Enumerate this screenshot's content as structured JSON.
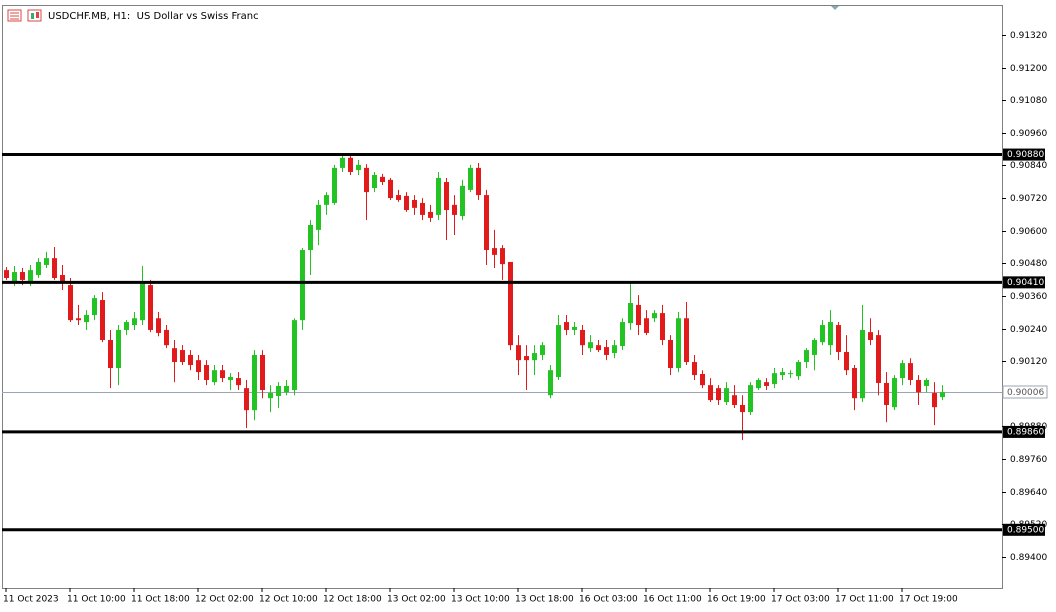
{
  "chart_data": {
    "type": "candlestick",
    "title": "USDCHF.MB, H1:  US Dollar vs Swiss Franc",
    "categories": [
      "11 Oct 2023",
      null,
      null,
      null,
      null,
      null,
      null,
      null,
      "11 Oct 10:00",
      null,
      null,
      null,
      null,
      null,
      null,
      null,
      "11 Oct 18:00",
      null,
      null,
      null,
      null,
      null,
      null,
      null,
      "12 Oct 02:00",
      null,
      null,
      null,
      null,
      null,
      null,
      null,
      "12 Oct 10:00",
      null,
      null,
      null,
      null,
      null,
      null,
      null,
      "12 Oct 18:00",
      null,
      null,
      null,
      null,
      null,
      null,
      null,
      "13 Oct 02:00",
      null,
      null,
      null,
      null,
      null,
      null,
      null,
      "13 Oct 10:00",
      null,
      null,
      null,
      null,
      null,
      null,
      null,
      "13 Oct 18:00",
      null,
      null,
      null,
      null,
      null,
      null,
      null,
      "16 Oct 03:00",
      null,
      null,
      null,
      null,
      null,
      null,
      null,
      "16 Oct 11:00",
      null,
      null,
      null,
      null,
      null,
      null,
      null,
      "16 Oct 19:00",
      null,
      null,
      null,
      null,
      null,
      null,
      null,
      "17 Oct 03:00",
      null,
      null,
      null,
      null,
      null,
      null,
      null,
      "17 Oct 11:00",
      null,
      null,
      null,
      null,
      null,
      null,
      null,
      "17 Oct 19:00",
      null,
      null,
      null,
      null,
      null
    ],
    "open": [
      0.90455,
      0.90407,
      0.90448,
      0.90415,
      0.90437,
      0.90474,
      0.90499,
      0.90437,
      0.904,
      0.90278,
      0.90264,
      0.9029,
      0.90345,
      0.90198,
      0.90095,
      0.90235,
      0.90253,
      0.90271,
      0.904,
      0.90278,
      0.90235,
      0.90168,
      0.90161,
      0.90143,
      0.90124,
      0.90106,
      0.90043,
      0.90087,
      0.90051,
      0.90058,
      0.90021,
      0.8994,
      0.90143,
      0.89984,
      0.89992,
      0.90006,
      0.90014,
      0.90271,
      0.90529,
      0.90603,
      0.90695,
      0.90702,
      0.90831,
      0.90868,
      0.90823,
      0.90831,
      0.90757,
      0.90798,
      0.90787,
      0.90731,
      0.90728,
      0.90713,
      0.90702,
      0.90669,
      0.90658,
      0.90779,
      0.90695,
      0.90654,
      0.9075,
      0.90831,
      0.90731,
      0.90536,
      0.90536,
      0.90485,
      0.90179,
      0.90139,
      0.90124,
      0.90143,
      0.89995,
      0.90062,
      0.90264,
      0.90235,
      0.90235,
      0.90168,
      0.90179,
      0.90172,
      0.9015,
      0.90176,
      0.9026,
      0.90327,
      0.90278,
      0.90278,
      0.90297,
      0.90198,
      0.90095,
      0.90278,
      0.90117,
      0.90073,
      0.90032,
      0.90021,
      0.8997,
      0.89995,
      0.89959,
      0.89933,
      0.90021,
      0.90043,
      0.90036,
      0.90069,
      0.90073,
      0.90065,
      0.90117,
      0.90143,
      0.9019,
      0.90179,
      0.90253,
      0.90154,
      0.90095,
      0.89984,
      0.90227,
      0.90216,
      0.9004,
      0.89951,
      0.90058,
      0.90113,
      0.90051,
      0.90029,
      0.90003,
      0.89988
    ],
    "high": [
      0.90466,
      0.9047,
      0.90463,
      0.90474,
      0.90499,
      0.90522,
      0.9054,
      0.90474,
      0.90426,
      0.90327,
      0.90308,
      0.90363,
      0.90374,
      0.90235,
      0.90253,
      0.90271,
      0.90301,
      0.9047,
      0.90419,
      0.90301,
      0.90253,
      0.90198,
      0.90179,
      0.90161,
      0.90143,
      0.90124,
      0.90106,
      0.90106,
      0.90076,
      0.9008,
      0.90051,
      0.90161,
      0.90161,
      0.90032,
      0.90043,
      0.90051,
      0.90278,
      0.90536,
      0.90639,
      0.90713,
      0.90742,
      0.90842,
      0.90879,
      0.90879,
      0.9086,
      0.90845,
      0.90816,
      0.90809,
      0.90794,
      0.9075,
      0.90742,
      0.90731,
      0.9072,
      0.90695,
      0.90816,
      0.90794,
      0.90731,
      0.90787,
      0.90842,
      0.90849,
      0.9075,
      0.90603,
      0.90547,
      0.90485,
      0.90216,
      0.90179,
      0.90179,
      0.9019,
      0.90106,
      0.9029,
      0.9029,
      0.90264,
      0.90253,
      0.90216,
      0.90198,
      0.90198,
      0.90198,
      0.90278,
      0.90411,
      0.90363,
      0.90308,
      0.90308,
      0.90327,
      0.90216,
      0.90301,
      0.90338,
      0.90143,
      0.90087,
      0.90058,
      0.90032,
      0.90043,
      0.90032,
      0.89995,
      0.90043,
      0.90058,
      0.90058,
      0.90095,
      0.90095,
      0.90087,
      0.90124,
      0.90168,
      0.90205,
      0.90271,
      0.90308,
      0.90264,
      0.90216,
      0.90106,
      0.90327,
      0.90278,
      0.90235,
      0.9008,
      0.90069,
      0.90124,
      0.90131,
      0.90069,
      0.90058,
      0.90043,
      0.90032
    ],
    "low": [
      0.90419,
      0.90396,
      0.904,
      0.90396,
      0.90426,
      0.90463,
      0.90419,
      0.90382,
      0.90264,
      0.90253,
      0.90235,
      0.90271,
      0.9019,
      0.90021,
      0.90032,
      0.90216,
      0.90235,
      0.90253,
      0.90227,
      0.90212,
      0.90168,
      0.90043,
      0.90106,
      0.90087,
      0.90051,
      0.90032,
      0.90032,
      0.90043,
      0.90014,
      0.90014,
      0.89874,
      0.89903,
      0.89984,
      0.89933,
      0.89948,
      0.89995,
      0.89995,
      0.90235,
      0.90437,
      0.90547,
      0.90658,
      0.90695,
      0.90816,
      0.90805,
      0.90805,
      0.90639,
      0.90742,
      0.90768,
      0.90713,
      0.90706,
      0.90669,
      0.90658,
      0.90639,
      0.90632,
      0.90639,
      0.90566,
      0.90584,
      0.90639,
      0.90742,
      0.90713,
      0.90474,
      0.90463,
      0.90419,
      0.90161,
      0.90069,
      0.90014,
      0.90069,
      0.90124,
      0.89984,
      0.90051,
      0.90216,
      0.90216,
      0.90143,
      0.90154,
      0.90154,
      0.90124,
      0.90131,
      0.90161,
      0.90235,
      0.90216,
      0.90216,
      0.90264,
      0.90179,
      0.90069,
      0.9008,
      0.90106,
      0.90051,
      0.90021,
      0.8997,
      0.89959,
      0.89959,
      0.89948,
      0.8983,
      0.89922,
      0.90014,
      0.90014,
      0.90021,
      0.90051,
      0.90058,
      0.90051,
      0.90095,
      0.90087,
      0.90179,
      0.90143,
      0.90124,
      0.90069,
      0.8994,
      0.8997,
      0.90179,
      0.89995,
      0.89896,
      0.8994,
      0.90032,
      0.90032,
      0.89959,
      0.90006,
      0.89885,
      0.89977
    ],
    "close": [
      0.90426,
      0.90448,
      0.90419,
      0.90455,
      0.90485,
      0.90499,
      0.90426,
      0.90411,
      0.90271,
      0.90271,
      0.9029,
      0.90352,
      0.90198,
      0.90095,
      0.90235,
      0.90264,
      0.90278,
      0.90407,
      0.90235,
      0.90224,
      0.90179,
      0.90117,
      0.90117,
      0.90106,
      0.9008,
      0.90051,
      0.90087,
      0.90058,
      0.90062,
      0.90032,
      0.8994,
      0.90143,
      0.90014,
      0.90003,
      0.90029,
      0.90029,
      0.90271,
      0.90529,
      0.90621,
      0.90695,
      0.90731,
      0.90831,
      0.90868,
      0.90816,
      0.90842,
      0.90742,
      0.90805,
      0.90779,
      0.9072,
      0.90713,
      0.90676,
      0.90684,
      0.90658,
      0.90647,
      0.90794,
      0.90676,
      0.90658,
      0.90765,
      0.90831,
      0.90731,
      0.90529,
      0.90511,
      0.90477,
      0.90179,
      0.90124,
      0.90124,
      0.9015,
      0.90179,
      0.90087,
      0.90253,
      0.90235,
      0.90246,
      0.90179,
      0.9019,
      0.90161,
      0.90143,
      0.90179,
      0.90264,
      0.90334,
      0.90253,
      0.90224,
      0.90297,
      0.90198,
      0.90095,
      0.90278,
      0.90117,
      0.90069,
      0.90032,
      0.89977,
      0.89977,
      0.90021,
      0.89959,
      0.89933,
      0.90032,
      0.90051,
      0.90029,
      0.90076,
      0.9008,
      0.90076,
      0.90117,
      0.90161,
      0.90198,
      0.90253,
      0.90264,
      0.90154,
      0.90087,
      0.89984,
      0.90235,
      0.90198,
      0.9004,
      0.89959,
      0.90058,
      0.90113,
      0.90051,
      0.90006,
      0.90051,
      0.89951,
      0.90006
    ],
    "up_color": "#22c322",
    "down_color": "#e11b1b",
    "ylim": [
      0.89286,
      0.9143
    ],
    "yticks": [
      {
        "value": 0.9132,
        "label": "0.91320"
      },
      {
        "value": 0.912,
        "label": "0.91200"
      },
      {
        "value": 0.9108,
        "label": "0.91080"
      },
      {
        "value": 0.9096,
        "label": "0.90960"
      },
      {
        "value": 0.9084,
        "label": "0.90840"
      },
      {
        "value": 0.9072,
        "label": "0.90720"
      },
      {
        "value": 0.906,
        "label": "0.90600"
      },
      {
        "value": 0.9048,
        "label": "0.90480"
      },
      {
        "value": 0.9036,
        "label": "0.90360"
      },
      {
        "value": 0.9024,
        "label": "0.90240"
      },
      {
        "value": 0.9012,
        "label": "0.90120"
      },
      {
        "value": 0.8988,
        "label": "0.89880"
      },
      {
        "value": 0.8976,
        "label": "0.89760"
      },
      {
        "value": 0.8964,
        "label": "0.89640"
      },
      {
        "value": 0.8952,
        "label": "0.89520"
      },
      {
        "value": 0.894,
        "label": "0.89400"
      }
    ],
    "levels": [
      {
        "value": 0.9088,
        "label": "0.90880"
      },
      {
        "value": 0.9041,
        "label": "0.90410"
      },
      {
        "value": 0.8986,
        "label": "0.89860"
      },
      {
        "value": 0.895,
        "label": "0.89500"
      }
    ],
    "current_price": {
      "value": 0.90006,
      "label": "0.90006"
    }
  }
}
